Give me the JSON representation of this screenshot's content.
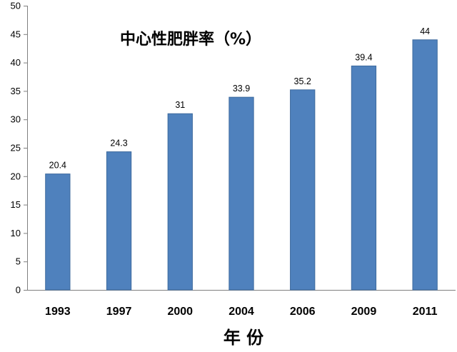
{
  "chart_data": {
    "type": "bar",
    "title": "中心性肥胖率（%）",
    "xlabel": "年 份",
    "ylabel": "",
    "categories": [
      "1993",
      "1997",
      "2000",
      "2004",
      "2006",
      "2009",
      "2011"
    ],
    "values": [
      20.4,
      24.3,
      31,
      33.9,
      35.2,
      39.4,
      44
    ],
    "data_labels": [
      "20.4",
      "24.3",
      "31",
      "33.9",
      "35.2",
      "39.4",
      "44"
    ],
    "ylim": [
      0,
      50
    ],
    "yticks": [
      "0",
      "5",
      "10",
      "15",
      "20",
      "25",
      "30",
      "35",
      "40",
      "45",
      "50"
    ],
    "grid": false,
    "legend": "none",
    "bar_color": "#4f81bd",
    "bar_edge_color": "#3d6a9e"
  }
}
